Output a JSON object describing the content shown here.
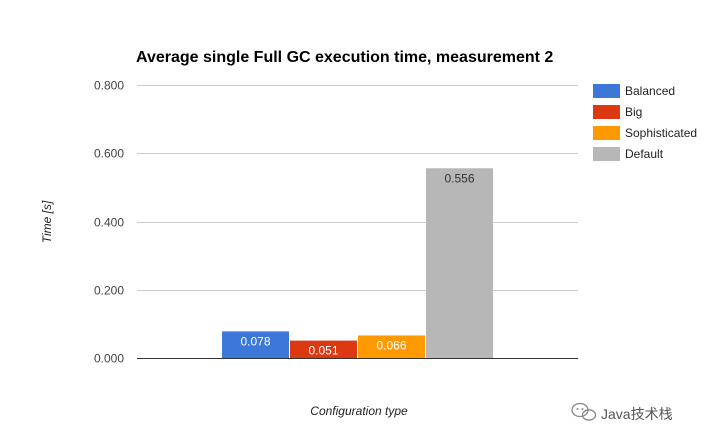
{
  "chart_data": {
    "type": "bar",
    "title": "Average single Full GC execution time, measurement 2",
    "xlabel": "Configuration type",
    "ylabel": "Time [s]",
    "ylim": [
      0,
      0.8
    ],
    "yticks": [
      "0.000",
      "0.200",
      "0.400",
      "0.600",
      "0.800"
    ],
    "grid": true,
    "legend_position": "right",
    "categories": [
      ""
    ],
    "series": [
      {
        "name": "Balanced",
        "values": [
          0.078
        ],
        "label": "0.078",
        "color": "#3c78d8"
      },
      {
        "name": "Big",
        "values": [
          0.051
        ],
        "label": "0.051",
        "color": "#dc3912"
      },
      {
        "name": "Sophisticated",
        "values": [
          0.066
        ],
        "label": "0.066",
        "color": "#ff9900"
      },
      {
        "name": "Default",
        "values": [
          0.556
        ],
        "label": "0.556",
        "color": "#b7b7b7"
      }
    ]
  },
  "watermark": {
    "text": "Java技术栈",
    "icon": "wechat-icon"
  }
}
